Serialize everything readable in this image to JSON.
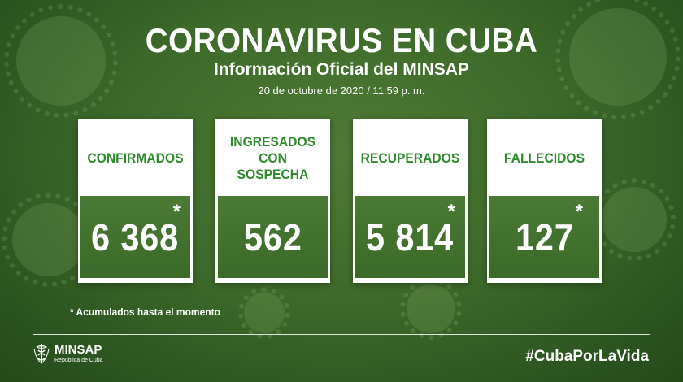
{
  "header": {
    "title": "CORONAVIRUS EN CUBA",
    "subtitle": "Información Oficial del MINSAP",
    "date": "20 de octubre de 2020 / 11:59 p. m."
  },
  "cards": [
    {
      "label_line1": "CONFIRMADOS",
      "label_line2": "",
      "value": "6 368",
      "asterisk": "*"
    },
    {
      "label_line1": "INGRESADOS",
      "label_line2": "CON SOSPECHA",
      "value": "562",
      "asterisk": ""
    },
    {
      "label_line1": "RECUPERADOS",
      "label_line2": "",
      "value": "5 814",
      "asterisk": "*"
    },
    {
      "label_line1": "FALLECIDOS",
      "label_line2": "",
      "value": "127",
      "asterisk": "*"
    }
  ],
  "footnote": "* Acumulados hasta el momento",
  "footer": {
    "logo_name": "MINSAP",
    "logo_sub": "República de Cuba",
    "hashtag": "#CubaPorLaVida"
  },
  "colors": {
    "label_green": "#2e8a2c",
    "value_bg": "#4a7a34",
    "page_bg": "#3e6a2a"
  },
  "icons": {
    "logo": "caduceus-icon",
    "background": "virus-icon"
  }
}
